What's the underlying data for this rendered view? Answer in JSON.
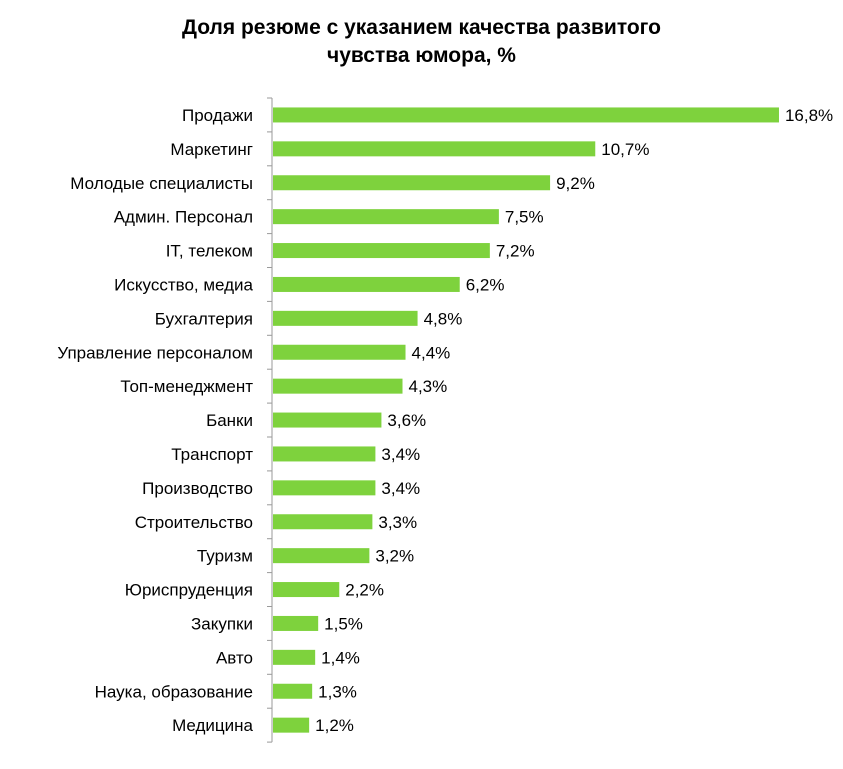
{
  "chart_data": {
    "type": "bar",
    "orientation": "horizontal",
    "title": "Доля резюме с указанием качества развитого чувства юмора, %",
    "title_lines": [
      "Доля резюме с указанием качества развитого",
      "чувства юмора, %"
    ],
    "categories": [
      "Продажи",
      "Маркетинг",
      "Молодые специалисты",
      "Админ. Персонал",
      "IT, телеком",
      "Искусство, медиа",
      "Бухгалтерия",
      "Управление персоналом",
      "Топ-менеджмент",
      "Банки",
      "Транспорт",
      "Производство",
      "Строительство",
      "Туризм",
      "Юриспруденция",
      "Закупки",
      "Авто",
      "Наука, образование",
      "Медицина"
    ],
    "values": [
      16.8,
      10.7,
      9.2,
      7.5,
      7.2,
      6.2,
      4.8,
      4.4,
      4.3,
      3.6,
      3.4,
      3.4,
      3.3,
      3.2,
      2.2,
      1.5,
      1.4,
      1.3,
      1.2
    ],
    "value_labels": [
      "16,8%",
      "10,7%",
      "9,2%",
      "7,5%",
      "7,2%",
      "6,2%",
      "4,8%",
      "4,4%",
      "4,3%",
      "3,6%",
      "3,4%",
      "3,4%",
      "3,3%",
      "3,2%",
      "2,2%",
      "1,5%",
      "1,4%",
      "1,3%",
      "1,2%"
    ],
    "xlim": [
      0,
      17
    ],
    "grid": false,
    "legend": "none",
    "bar_color": "#7ed23d",
    "axis_color": "#9a9a9a"
  }
}
